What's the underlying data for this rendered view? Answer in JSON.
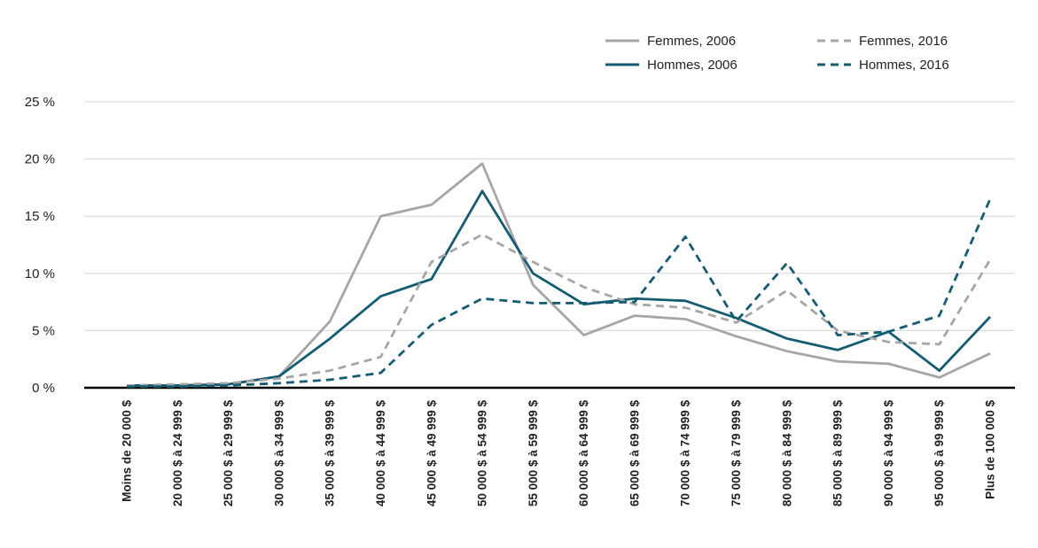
{
  "chart_data": {
    "type": "line",
    "title": "",
    "xlabel": "",
    "ylabel": "",
    "categories": [
      "Moins de 20 000 $",
      "20 000 $ à 24 999 $",
      "25 000 $ à 29 999 $",
      "30 000 $ à 34 999 $",
      "35 000 $ à 39 999 $",
      "40 000 $ à 44 999 $",
      "45 000 $ à 49 999 $",
      "50 000 $ à 54 999 $",
      "55 000 $ à 59 999 $",
      "60 000 $ à 64 999 $",
      "65 000 $ à 69 999 $",
      "70 000 $ à 74 999 $",
      "75 000 $ à 79 999 $",
      "80 000 $ à 84 999 $",
      "85 000 $ à 89 999 $",
      "90 000 $ à 94 999 $",
      "95 000 $ à 99 999 $",
      "Plus de 100 000 $"
    ],
    "series": [
      {
        "name": "Femmes, 2006",
        "style": "solid",
        "color": "#a6a6a6",
        "values": [
          0.2,
          0.2,
          0.3,
          1.0,
          5.8,
          15.0,
          16.0,
          19.6,
          9.0,
          4.6,
          6.3,
          6.0,
          4.5,
          3.2,
          2.3,
          2.1,
          0.9,
          3.0
        ]
      },
      {
        "name": "Hommes, 2006",
        "style": "solid",
        "color": "#155c72",
        "values": [
          0.2,
          0.2,
          0.3,
          1.0,
          4.3,
          8.0,
          9.5,
          17.2,
          10.0,
          7.3,
          7.8,
          7.6,
          6.1,
          4.3,
          3.3,
          4.9,
          1.5,
          6.2
        ]
      },
      {
        "name": "Femmes, 2016",
        "style": "dashed",
        "color": "#a6a6a6",
        "values": [
          0.2,
          0.3,
          0.4,
          0.8,
          1.5,
          2.7,
          11.0,
          13.4,
          11.0,
          8.8,
          7.3,
          7.0,
          5.7,
          8.5,
          5.0,
          4.0,
          3.8,
          11.2
        ]
      },
      {
        "name": "Hommes, 2016",
        "style": "dashed",
        "color": "#155c72",
        "values": [
          0.1,
          0.1,
          0.2,
          0.4,
          0.7,
          1.3,
          5.5,
          7.8,
          7.4,
          7.4,
          7.5,
          13.2,
          5.8,
          10.9,
          4.6,
          4.9,
          6.3,
          16.5
        ]
      }
    ],
    "y_axis": {
      "max": 25,
      "ticks": [
        {
          "value": 0,
          "label": "0 %"
        },
        {
          "value": 5,
          "label": "5 %"
        },
        {
          "value": 10,
          "label": "10 %"
        },
        {
          "value": 15,
          "label": "15 %"
        },
        {
          "value": 20,
          "label": "20 %"
        },
        {
          "value": 25,
          "label": "25 %"
        }
      ]
    },
    "legend": {
      "position": "top-right",
      "entries": [
        "Femmes, 2006",
        "Hommes, 2006",
        "Femmes, 2016",
        "Hommes, 2016"
      ]
    },
    "grid": "horizontal"
  }
}
